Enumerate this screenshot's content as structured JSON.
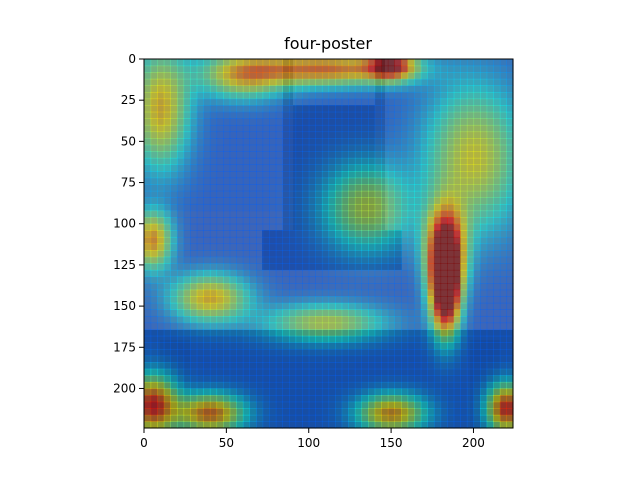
{
  "chart_data": {
    "type": "heatmap",
    "title": "four-poster",
    "xlabel": "",
    "ylabel": "",
    "xlim": [
      0,
      224
    ],
    "ylim": [
      224,
      0
    ],
    "x_ticks": [
      0,
      50,
      100,
      150,
      200
    ],
    "y_ticks": [
      0,
      25,
      50,
      75,
      100,
      125,
      150,
      175,
      200
    ],
    "grid": false,
    "colormap": "jet",
    "overlay_opacity": 0.5,
    "background_image": "photo of a wooden press on a table",
    "image_size": [
      224,
      224
    ],
    "heat_spots": [
      {
        "x": 183,
        "y": 140,
        "sx": 6,
        "sy": 18,
        "value": 1.0
      },
      {
        "x": 183,
        "y": 115,
        "sx": 8,
        "sy": 18,
        "value": 0.75
      },
      {
        "x": 110,
        "y": 6,
        "sx": 32,
        "sy": 7,
        "value": 0.55
      },
      {
        "x": 150,
        "y": 4,
        "sx": 10,
        "sy": 6,
        "value": 0.6
      },
      {
        "x": 5,
        "y": 210,
        "sx": 10,
        "sy": 12,
        "value": 0.65
      },
      {
        "x": 220,
        "y": 212,
        "sx": 8,
        "sy": 10,
        "value": 0.65
      },
      {
        "x": 40,
        "y": 215,
        "sx": 14,
        "sy": 8,
        "value": 0.55
      },
      {
        "x": 150,
        "y": 215,
        "sx": 14,
        "sy": 8,
        "value": 0.5
      },
      {
        "x": 10,
        "y": 30,
        "sx": 12,
        "sy": 25,
        "value": 0.45
      },
      {
        "x": 5,
        "y": 110,
        "sx": 8,
        "sy": 12,
        "value": 0.5
      },
      {
        "x": 40,
        "y": 145,
        "sx": 16,
        "sy": 10,
        "value": 0.45
      },
      {
        "x": 60,
        "y": 10,
        "sx": 18,
        "sy": 10,
        "value": 0.4
      },
      {
        "x": 135,
        "y": 90,
        "sx": 18,
        "sy": 18,
        "value": 0.35
      },
      {
        "x": 200,
        "y": 60,
        "sx": 20,
        "sy": 30,
        "value": 0.4
      },
      {
        "x": 110,
        "y": 160,
        "sx": 25,
        "sy": 8,
        "value": 0.35
      }
    ]
  }
}
